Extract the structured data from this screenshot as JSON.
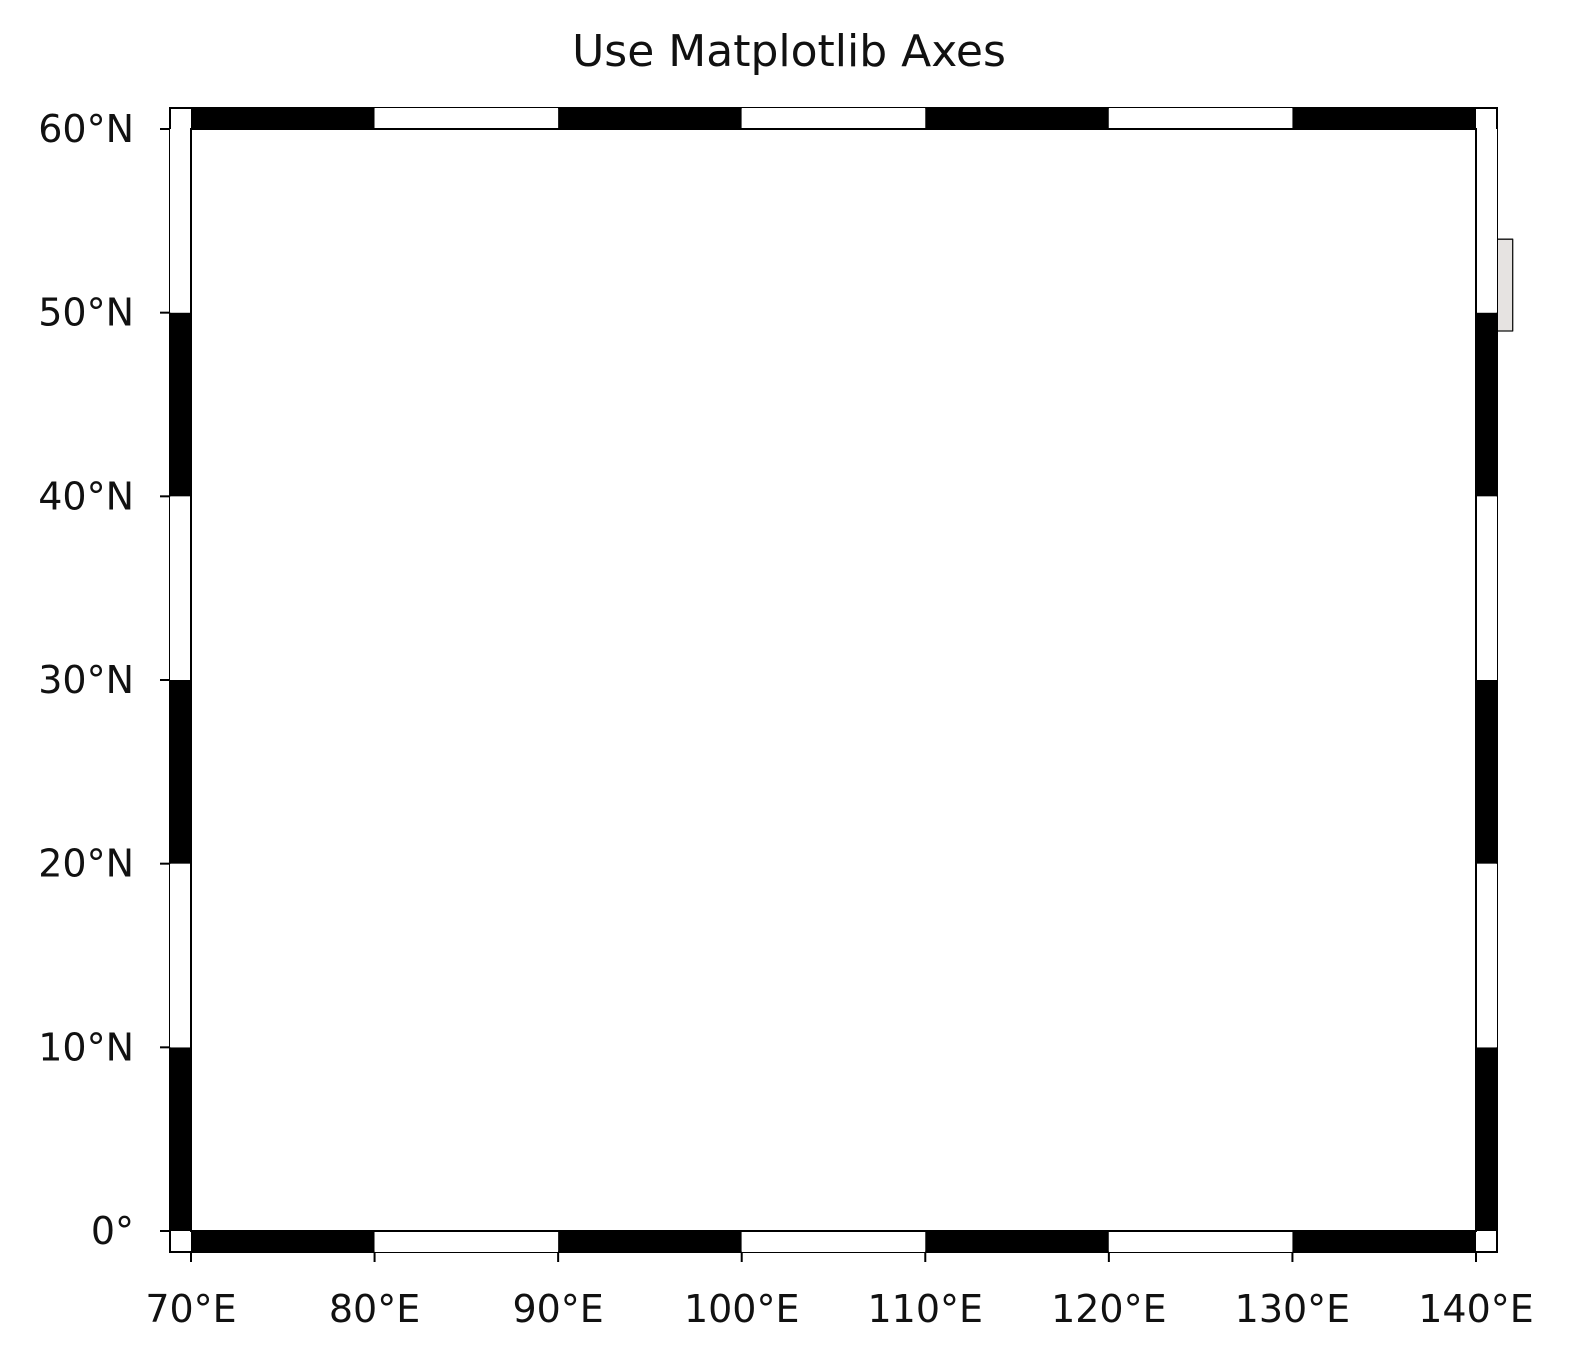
{
  "title": "Use Matplotlib Axes",
  "colors": {
    "ocean": "#c4e5f8",
    "land": "#e6e3e1",
    "china": "#fbfdff",
    "gridline": "#808080",
    "border": "#111111",
    "frame_dark": "#000000",
    "frame_light": "#ffffff"
  },
  "map": {
    "projection": "PlateCarree",
    "extent_lon": [
      70,
      140
    ],
    "extent_lat": [
      0,
      60
    ],
    "x_ticks": [
      70,
      80,
      90,
      100,
      110,
      120,
      130,
      140
    ],
    "y_ticks": [
      0,
      10,
      20,
      30,
      40,
      50,
      60
    ],
    "x_tick_labels": [
      "70°E",
      "80°E",
      "90°E",
      "100°E",
      "110°E",
      "120°E",
      "130°E",
      "140°E"
    ],
    "y_tick_labels": [
      "0°",
      "10°N",
      "20°N",
      "30°N",
      "40°N",
      "50°N",
      "60°N"
    ],
    "gridlines": "dashed",
    "frame": "alternating black-white checker border, 10° segments"
  }
}
